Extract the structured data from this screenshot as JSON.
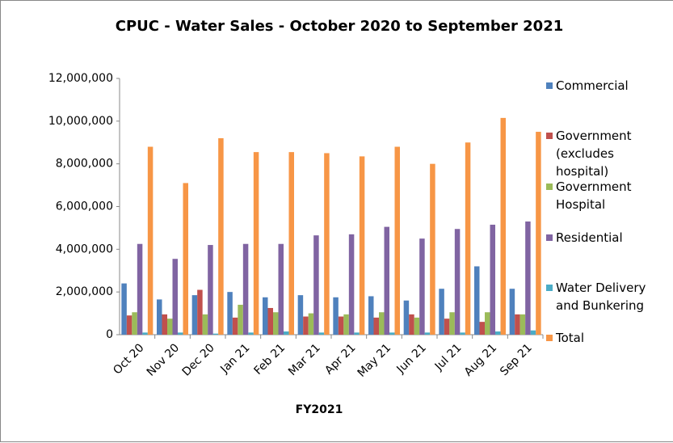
{
  "chart_data": {
    "type": "bar",
    "title": "CPUC - Water Sales - October 2020 to September 2021",
    "x_label": "FY2021",
    "categories": [
      "Oct 20",
      "Nov 20",
      "Dec 20",
      "Jan 21",
      "Feb 21",
      "Mar 21",
      "Apr 21",
      "May 21",
      "Jun 21",
      "Jul 21",
      "Aug 21",
      "Sep 21"
    ],
    "series": [
      {
        "name": "Commercial",
        "color": "#4f81bd",
        "values": [
          2400000,
          1650000,
          1850000,
          2000000,
          1750000,
          1850000,
          1750000,
          1800000,
          1600000,
          2150000,
          3200000,
          2150000
        ]
      },
      {
        "name": "Government (excludes hospital)",
        "color": "#c0504d",
        "values": [
          900000,
          950000,
          2100000,
          800000,
          1250000,
          850000,
          850000,
          800000,
          950000,
          750000,
          600000,
          950000
        ]
      },
      {
        "name": "Government Hospital",
        "color": "#9bbb59",
        "values": [
          1050000,
          750000,
          950000,
          1400000,
          1050000,
          1000000,
          950000,
          1050000,
          800000,
          1050000,
          1050000,
          950000
        ]
      },
      {
        "name": "Residential",
        "color": "#8064a2",
        "values": [
          4250000,
          3550000,
          4200000,
          4250000,
          4250000,
          4650000,
          4700000,
          5050000,
          4500000,
          4950000,
          5150000,
          5300000
        ]
      },
      {
        "name": "Water Delivery and Bunkering",
        "color": "#4bacc6",
        "values": [
          100000,
          100000,
          50000,
          100000,
          150000,
          100000,
          100000,
          100000,
          100000,
          100000,
          150000,
          200000
        ]
      },
      {
        "name": "Total",
        "color": "#f79646",
        "values": [
          8800000,
          7100000,
          9200000,
          8550000,
          8550000,
          8500000,
          8350000,
          8800000,
          8000000,
          9000000,
          10150000,
          9500000
        ]
      }
    ],
    "ylim": [
      0,
      12000000
    ],
    "yticks": [
      0,
      {
        "value": 2000000,
        "label": "2,000,000"
      },
      {
        "value": 4000000,
        "label": "4,000,000"
      },
      {
        "value": 6000000,
        "label": "6,000,000"
      },
      {
        "value": 8000000,
        "label": "8,000,000"
      },
      {
        "value": 10000000,
        "label": "10,000,000"
      },
      {
        "value": 12000000,
        "label": "12,000,000"
      }
    ],
    "legend": "right"
  }
}
